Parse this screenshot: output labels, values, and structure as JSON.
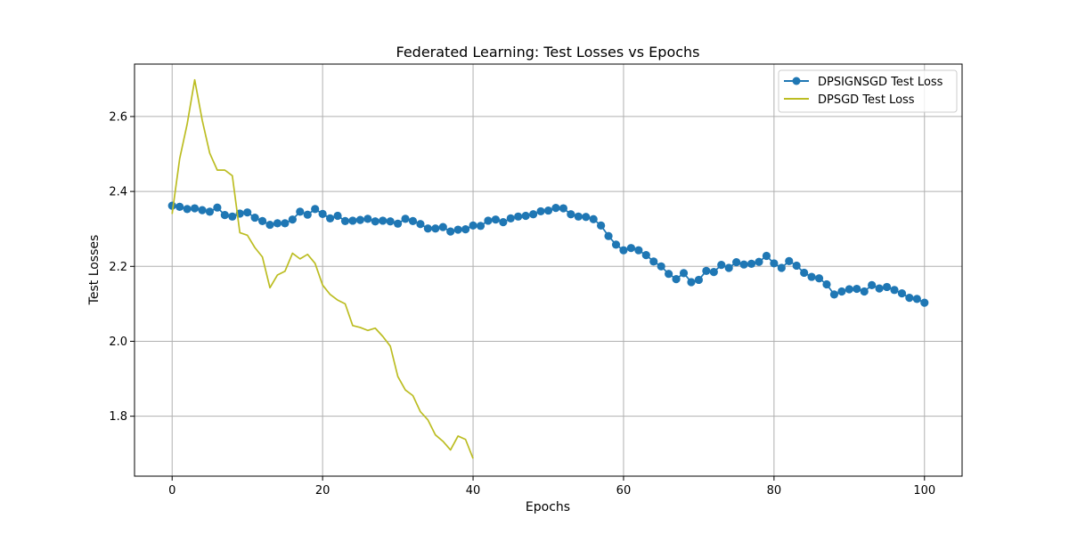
{
  "chart_data": {
    "type": "line",
    "title": "Federated Learning: Test Losses vs Epochs",
    "xlabel": "Epochs",
    "ylabel": "Test Losses",
    "xlim": [
      -5,
      105
    ],
    "ylim": [
      1.64,
      2.74
    ],
    "xticks": [
      0,
      20,
      40,
      60,
      80,
      100
    ],
    "yticks": [
      1.8,
      2.0,
      2.2,
      2.4,
      2.6
    ],
    "ytick_labels": [
      "1.8",
      "2.0",
      "2.2",
      "2.4",
      "2.6"
    ],
    "grid": true,
    "legend_position": "top-right",
    "series": [
      {
        "name": "DPSIGNSGD Test Loss",
        "color": "#1f77b4",
        "marker": "circle",
        "x": [
          0,
          1,
          2,
          3,
          4,
          5,
          6,
          7,
          8,
          9,
          10,
          11,
          12,
          13,
          14,
          15,
          16,
          17,
          18,
          19,
          20,
          21,
          22,
          23,
          24,
          25,
          26,
          27,
          28,
          29,
          30,
          31,
          32,
          33,
          34,
          35,
          36,
          37,
          38,
          39,
          40,
          41,
          42,
          43,
          44,
          45,
          46,
          47,
          48,
          49,
          50,
          51,
          52,
          53,
          54,
          55,
          56,
          57,
          58,
          59,
          60,
          61,
          62,
          63,
          64,
          65,
          66,
          67,
          68,
          69,
          70,
          71,
          72,
          73,
          74,
          75,
          76,
          77,
          78,
          79,
          80,
          81,
          82,
          83,
          84,
          85,
          86,
          87,
          88,
          89,
          90,
          91,
          92,
          93,
          94,
          95,
          96,
          97,
          98,
          99,
          100
        ],
        "y": [
          2.362,
          2.359,
          2.353,
          2.355,
          2.35,
          2.346,
          2.357,
          2.337,
          2.333,
          2.341,
          2.344,
          2.33,
          2.321,
          2.311,
          2.315,
          2.315,
          2.325,
          2.346,
          2.338,
          2.353,
          2.34,
          2.328,
          2.335,
          2.321,
          2.322,
          2.324,
          2.327,
          2.32,
          2.322,
          2.32,
          2.314,
          2.327,
          2.321,
          2.313,
          2.301,
          2.301,
          2.305,
          2.293,
          2.298,
          2.299,
          2.309,
          2.308,
          2.322,
          2.325,
          2.318,
          2.328,
          2.333,
          2.335,
          2.339,
          2.347,
          2.349,
          2.356,
          2.355,
          2.339,
          2.333,
          2.332,
          2.326,
          2.309,
          2.281,
          2.258,
          2.243,
          2.249,
          2.243,
          2.23,
          2.213,
          2.2,
          2.18,
          2.166,
          2.182,
          2.158,
          2.164,
          2.188,
          2.185,
          2.204,
          2.196,
          2.211,
          2.205,
          2.207,
          2.212,
          2.228,
          2.208,
          2.196,
          2.214,
          2.202,
          2.183,
          2.172,
          2.168,
          2.152,
          2.125,
          2.133,
          2.139,
          2.14,
          2.133,
          2.15,
          2.141,
          2.145,
          2.137,
          2.128,
          2.116,
          2.113,
          2.103
        ]
      },
      {
        "name": "DPSGD Test Loss",
        "color": "#bcbd22",
        "marker": "none",
        "x": [
          0,
          1,
          2,
          3,
          4,
          5,
          6,
          7,
          8,
          9,
          10,
          11,
          12,
          13,
          14,
          15,
          16,
          17,
          18,
          19,
          20,
          21,
          22,
          23,
          24,
          25,
          26,
          27,
          28,
          29,
          30,
          31,
          32,
          33,
          34,
          35,
          36,
          37,
          38,
          39,
          40
        ],
        "y": [
          2.34,
          2.487,
          2.58,
          2.698,
          2.59,
          2.502,
          2.457,
          2.457,
          2.442,
          2.29,
          2.283,
          2.25,
          2.225,
          2.143,
          2.177,
          2.187,
          2.235,
          2.22,
          2.232,
          2.208,
          2.15,
          2.125,
          2.11,
          2.1,
          2.042,
          2.037,
          2.029,
          2.035,
          2.013,
          1.987,
          1.906,
          1.87,
          1.855,
          1.812,
          1.79,
          1.75,
          1.733,
          1.71,
          1.747,
          1.738,
          1.687
        ]
      }
    ]
  }
}
